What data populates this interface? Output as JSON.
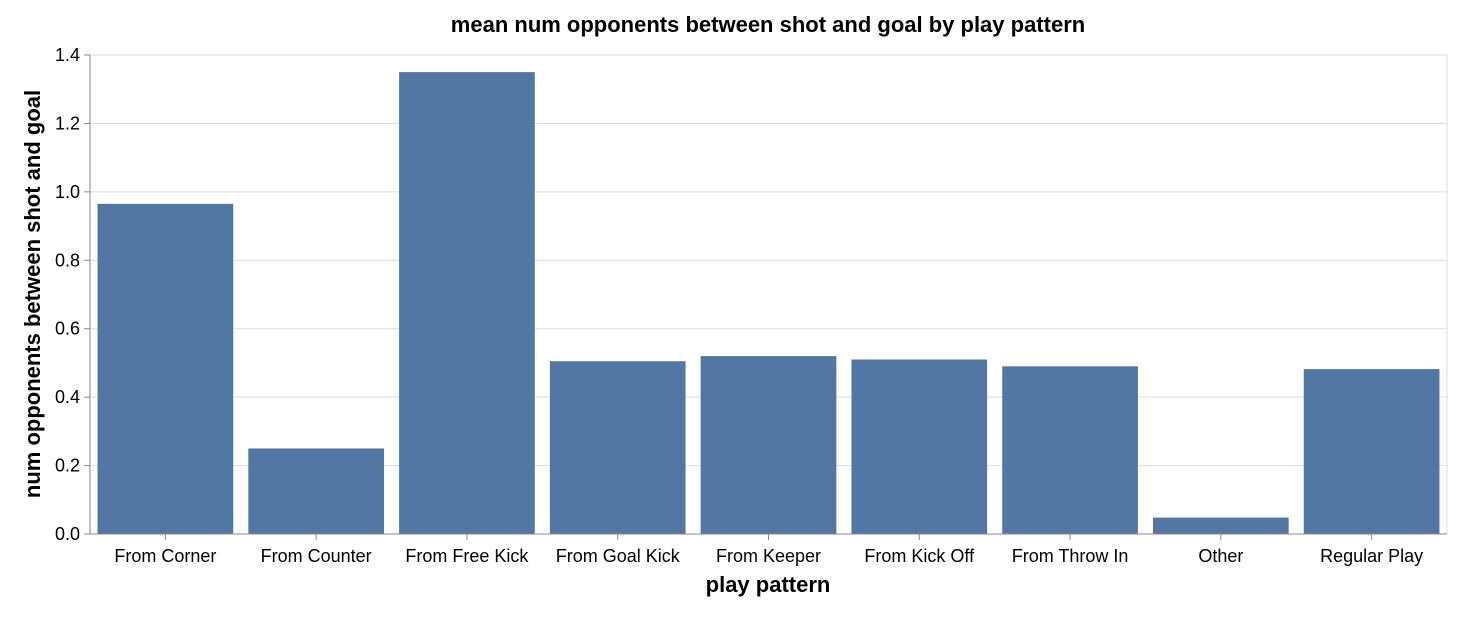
{
  "chart_data": {
    "type": "bar",
    "title": "mean num opponents between shot and goal by play pattern",
    "xlabel": "play pattern",
    "ylabel": "num opponents between shot and goal",
    "categories": [
      "From Corner",
      "From Counter",
      "From Free Kick",
      "From Goal Kick",
      "From Keeper",
      "From Kick Off",
      "From Throw In",
      "Other",
      "Regular Play"
    ],
    "values": [
      0.965,
      0.25,
      1.35,
      0.505,
      0.52,
      0.51,
      0.49,
      0.048,
      0.482
    ],
    "ylim": [
      0,
      1.4
    ],
    "yticks": [
      "0.0",
      "0.2",
      "0.4",
      "0.6",
      "0.8",
      "1.0",
      "1.2",
      "1.4"
    ],
    "grid": true,
    "bar_color": "#5377a3"
  }
}
